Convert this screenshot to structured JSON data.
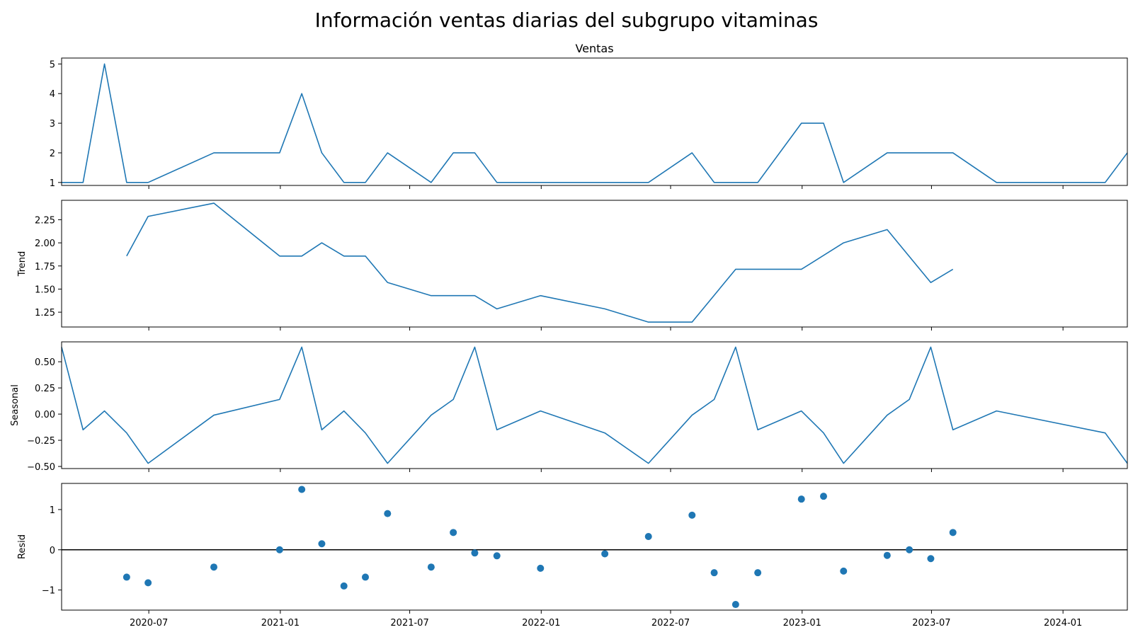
{
  "figure": {
    "title": "Información ventas diarias del subgrupo vitaminas"
  },
  "chart_data": [
    {
      "type": "line",
      "title": "Ventas",
      "ylabel": "",
      "ylim": [
        0.9,
        5.2
      ],
      "yticks": [
        1,
        2,
        3,
        4,
        5
      ],
      "yticklabels": [
        "1",
        "2",
        "3",
        "4",
        "5"
      ],
      "x": [
        "2020-03-01",
        "2020-03-31",
        "2020-04-30",
        "2020-05-31",
        "2020-06-30",
        "2020-09-30",
        "2020-12-31",
        "2021-01-31",
        "2021-02-28",
        "2021-03-31",
        "2021-04-30",
        "2021-05-31",
        "2021-07-31",
        "2021-08-31",
        "2021-09-30",
        "2021-10-31",
        "2021-12-31",
        "2022-03-31",
        "2022-05-31",
        "2022-07-31",
        "2022-08-31",
        "2022-09-30",
        "2022-10-31",
        "2022-12-31",
        "2023-01-31",
        "2023-02-28",
        "2023-04-30",
        "2023-05-31",
        "2023-06-30",
        "2023-07-31",
        "2023-09-30",
        "2024-02-29",
        "2024-03-31"
      ],
      "series": [
        {
          "values": [
            1,
            1,
            5,
            1,
            1,
            2,
            2,
            4,
            2,
            1,
            1,
            2,
            1,
            2,
            2,
            1,
            1,
            1,
            1,
            2,
            1,
            1,
            1,
            3,
            3,
            1,
            2,
            2,
            2,
            2,
            1,
            1,
            2
          ],
          "color": "#1f77b4"
        }
      ]
    },
    {
      "type": "line",
      "title": "",
      "ylabel": "Trend",
      "ylim": [
        1.09,
        2.46
      ],
      "yticks": [
        1.25,
        1.5,
        1.75,
        2.0,
        2.25
      ],
      "yticklabels": [
        "1.25",
        "1.50",
        "1.75",
        "2.00",
        "2.25"
      ],
      "x": [
        "2020-05-31",
        "2020-06-30",
        "2020-09-30",
        "2020-12-31",
        "2021-01-31",
        "2021-02-28",
        "2021-03-31",
        "2021-04-30",
        "2021-05-31",
        "2021-07-31",
        "2021-08-31",
        "2021-09-30",
        "2021-10-31",
        "2021-12-31",
        "2022-03-31",
        "2022-05-31",
        "2022-07-31",
        "2022-09-30",
        "2022-10-31",
        "2022-12-31",
        "2023-02-28",
        "2023-04-30",
        "2023-06-30",
        "2023-07-31"
      ],
      "series": [
        {
          "values": [
            1.857,
            2.286,
            2.429,
            1.857,
            1.857,
            2.0,
            1.857,
            1.857,
            1.571,
            1.429,
            1.429,
            1.429,
            1.286,
            1.429,
            1.286,
            1.143,
            1.143,
            1.714,
            1.714,
            1.714,
            2.0,
            2.143,
            1.571,
            1.714
          ],
          "color": "#1f77b4"
        }
      ]
    },
    {
      "type": "line",
      "title": "",
      "ylabel": "Seasonal",
      "ylim": [
        -0.52,
        0.69
      ],
      "yticks": [
        -0.5,
        -0.25,
        0.0,
        0.25,
        0.5
      ],
      "yticklabels": [
        "−0.50",
        "−0.25",
        "0.00",
        "0.25",
        "0.50"
      ],
      "x": [
        "2020-03-01",
        "2020-03-31",
        "2020-04-30",
        "2020-05-31",
        "2020-06-30",
        "2020-09-30",
        "2020-12-31",
        "2021-01-31",
        "2021-02-28",
        "2021-03-31",
        "2021-04-30",
        "2021-05-31",
        "2021-07-31",
        "2021-08-31",
        "2021-09-30",
        "2021-10-31",
        "2021-12-31",
        "2022-03-31",
        "2022-05-31",
        "2022-07-31",
        "2022-08-31",
        "2022-09-30",
        "2022-10-31",
        "2022-12-31",
        "2023-01-31",
        "2023-02-28",
        "2023-04-30",
        "2023-05-31",
        "2023-06-30",
        "2023-07-31",
        "2023-09-30",
        "2024-02-29",
        "2024-03-31"
      ],
      "series": [
        {
          "values": [
            0.64,
            -0.15,
            0.03,
            -0.18,
            -0.47,
            -0.01,
            0.14,
            0.64,
            -0.15,
            0.03,
            -0.18,
            -0.47,
            -0.01,
            0.14,
            0.64,
            -0.15,
            0.03,
            -0.18,
            -0.47,
            -0.01,
            0.14,
            0.64,
            -0.15,
            0.03,
            -0.18,
            -0.47,
            -0.01,
            0.14,
            0.64,
            -0.15,
            0.03,
            -0.18,
            -0.47
          ],
          "color": "#1f77b4"
        }
      ]
    },
    {
      "type": "scatter",
      "title": "",
      "ylabel": "Resid",
      "ylim": [
        -1.5,
        1.65
      ],
      "yticks": [
        -1,
        0,
        1
      ],
      "yticklabels": [
        "−1",
        "0",
        "1"
      ],
      "baseline": 0,
      "x": [
        "2020-05-31",
        "2020-06-30",
        "2020-09-30",
        "2020-12-31",
        "2021-01-31",
        "2021-02-28",
        "2021-03-31",
        "2021-04-30",
        "2021-05-31",
        "2021-07-31",
        "2021-08-31",
        "2021-09-30",
        "2021-10-31",
        "2021-12-31",
        "2022-03-31",
        "2022-05-31",
        "2022-07-31",
        "2022-08-31",
        "2022-09-30",
        "2022-10-31",
        "2022-12-31",
        "2023-01-31",
        "2023-02-28",
        "2023-04-30",
        "2023-05-31",
        "2023-06-30",
        "2023-07-31"
      ],
      "series": [
        {
          "values": [
            -0.68,
            -0.82,
            -0.43,
            0.0,
            1.5,
            0.15,
            -0.9,
            -0.68,
            0.9,
            -0.43,
            0.43,
            -0.08,
            -0.15,
            -0.46,
            -0.1,
            0.33,
            0.86,
            -0.57,
            -1.36,
            -0.57,
            1.26,
            1.33,
            -0.53,
            -0.14,
            0.0,
            -0.22,
            0.43
          ],
          "color": "#1f77b4"
        }
      ]
    }
  ],
  "x_axis": {
    "range": [
      "2020-03-01",
      "2024-03-31"
    ],
    "ticks": [
      "2020-07-01",
      "2021-01-01",
      "2021-07-01",
      "2022-01-01",
      "2022-07-01",
      "2023-01-01",
      "2023-07-01",
      "2024-01-01"
    ],
    "ticklabels": [
      "2020-07",
      "2021-01",
      "2021-07",
      "2022-01",
      "2022-07",
      "2023-01",
      "2023-07",
      "2024-01"
    ]
  }
}
